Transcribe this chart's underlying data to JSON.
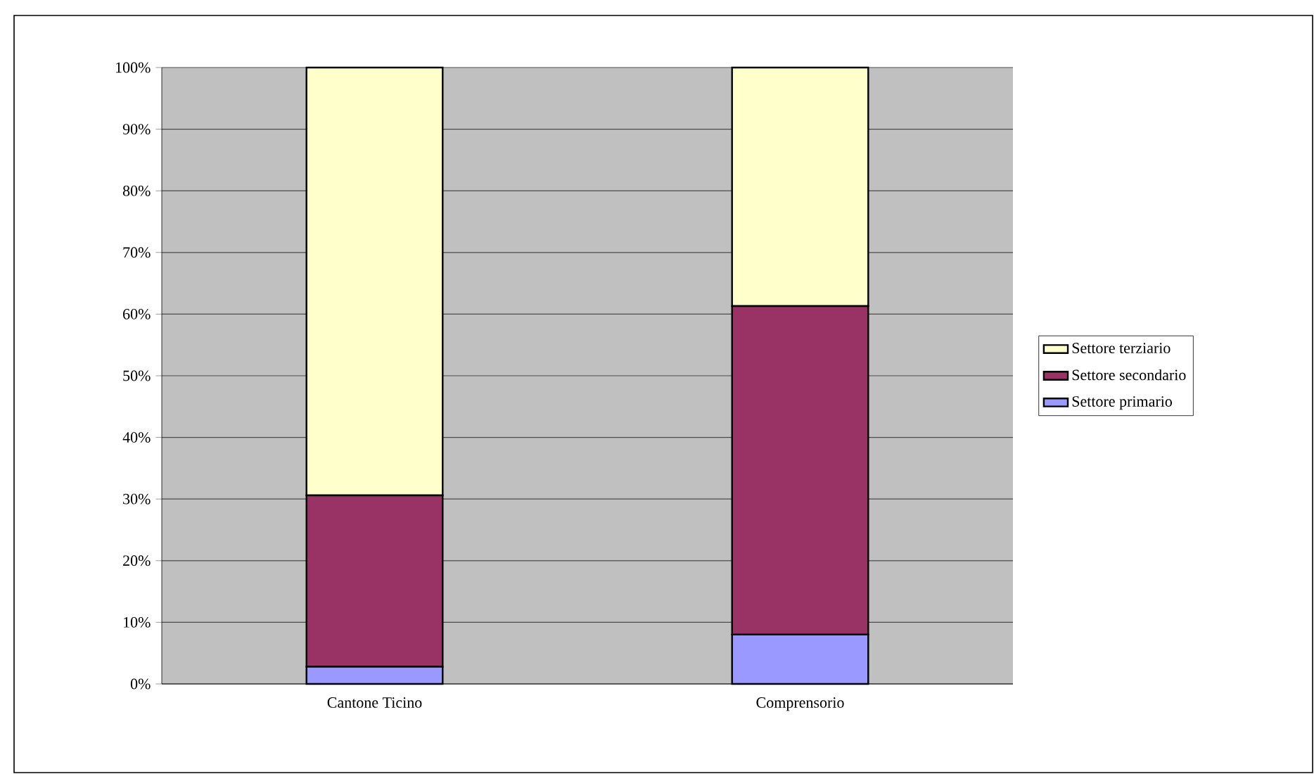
{
  "chart_data": {
    "type": "bar",
    "stacked": true,
    "categories": [
      "Cantone Ticino",
      "Comprensorio"
    ],
    "series": [
      {
        "name": "Settore primario",
        "color": "#9999ff",
        "values": [
          2.8,
          8.0
        ]
      },
      {
        "name": "Settore secondario",
        "color": "#993366",
        "values": [
          27.8,
          53.3
        ]
      },
      {
        "name": "Settore terziario",
        "color": "#ffffcc",
        "values": [
          69.4,
          38.7
        ]
      }
    ],
    "ylim": [
      0,
      100
    ],
    "yticks": [
      {
        "value": 0,
        "label": "0%"
      },
      {
        "value": 10,
        "label": "10%"
      },
      {
        "value": 20,
        "label": "20%"
      },
      {
        "value": 30,
        "label": "30%"
      },
      {
        "value": 40,
        "label": "40%"
      },
      {
        "value": 50,
        "label": "50%"
      },
      {
        "value": 60,
        "label": "60%"
      },
      {
        "value": 70,
        "label": "70%"
      },
      {
        "value": 80,
        "label": "80%"
      },
      {
        "value": 90,
        "label": "90%"
      },
      {
        "value": 100,
        "label": "100%"
      }
    ],
    "grid": "y",
    "legend": "right"
  }
}
